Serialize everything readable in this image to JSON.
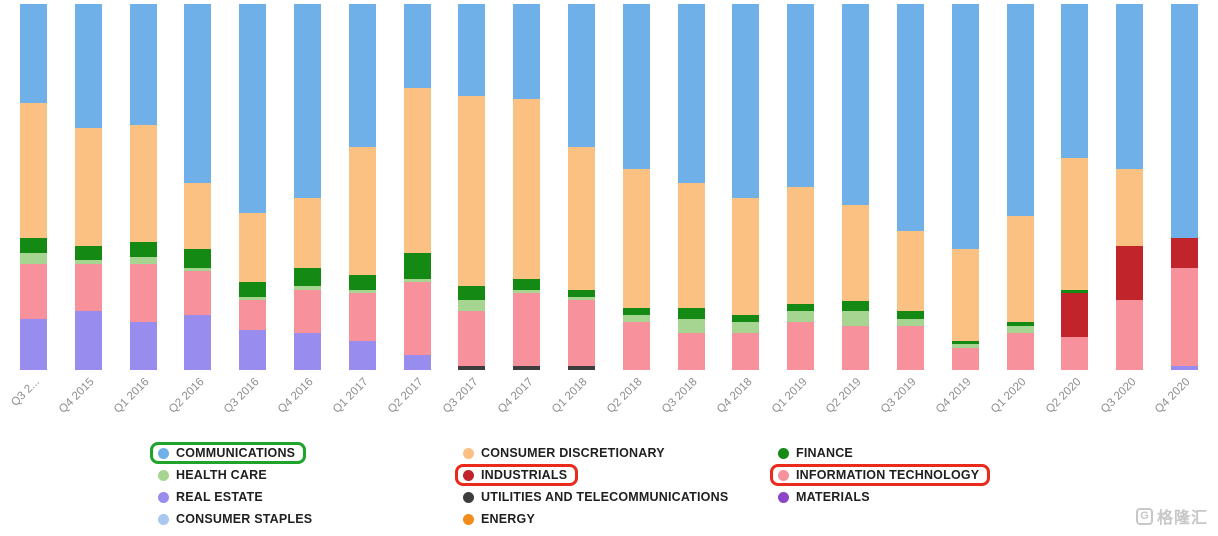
{
  "chart_data": {
    "type": "bar",
    "stacked": true,
    "normalized_percent": true,
    "title": "",
    "xlabel": "",
    "ylabel": "",
    "grid": false,
    "legend_position": "bottom",
    "ylim": [
      0,
      100
    ],
    "categories": [
      "Q3 2...",
      "Q4 2015",
      "Q1 2016",
      "Q2 2016",
      "Q3 2016",
      "Q4 2016",
      "Q1 2017",
      "Q2 2017",
      "Q3 2017",
      "Q4 2017",
      "Q1 2018",
      "Q2 2018",
      "Q3 2018",
      "Q4 2018",
      "Q1 2019",
      "Q2 2019",
      "Q3 2019",
      "Q4 2019",
      "Q1 2020",
      "Q2 2020",
      "Q3 2020",
      "Q4 2020"
    ],
    "series": [
      {
        "id": "consumer-staples",
        "name": "CONSUMER STAPLES",
        "color": "#a9c7ef",
        "values": [
          0,
          0,
          0,
          0,
          0,
          0,
          0,
          0,
          0,
          0,
          0,
          0,
          0,
          0,
          0,
          0,
          0,
          0,
          0,
          0,
          0,
          0
        ]
      },
      {
        "id": "materials",
        "name": "MATERIALS",
        "color": "#8e44c8",
        "values": [
          0,
          0,
          0,
          0,
          0,
          0,
          0,
          0,
          0,
          0,
          0,
          0,
          0,
          0,
          0,
          0,
          0,
          0,
          0,
          0,
          0,
          0
        ]
      },
      {
        "id": "utilities-and-telecommunications",
        "name": "UTILITIES AND TELECOMMUNICATIONS",
        "color": "#3d3d3d",
        "values": [
          0,
          0,
          0,
          0,
          0,
          0,
          0,
          0,
          1,
          1,
          1,
          0,
          0,
          0,
          0,
          0,
          0,
          0,
          0,
          0,
          0,
          0
        ]
      },
      {
        "id": "real-estate",
        "name": "REAL ESTATE",
        "color": "#988cee",
        "values": [
          14,
          16,
          13,
          15,
          11,
          10,
          8,
          4,
          0,
          0,
          0,
          0,
          0,
          0,
          0,
          0,
          0,
          0,
          0,
          0,
          0,
          1
        ]
      },
      {
        "id": "information-technology",
        "name": "INFORMATION TECHNOLOGY",
        "color": "#f7929c",
        "values": [
          15,
          13,
          16,
          12,
          8,
          12,
          13,
          20,
          15,
          20,
          18,
          13,
          10,
          10,
          13,
          12,
          12,
          6,
          10,
          9,
          19,
          27
        ]
      },
      {
        "id": "health-care",
        "name": "HEALTH CARE",
        "color": "#a6d592",
        "values": [
          3,
          1,
          2,
          1,
          1,
          1,
          1,
          1,
          3,
          1,
          1,
          2,
          4,
          3,
          3,
          4,
          2,
          1,
          2,
          0,
          0,
          0
        ]
      },
      {
        "id": "industrials",
        "name": "INDUSTRIALS",
        "color": "#c1242b",
        "values": [
          0,
          0,
          0,
          0,
          0,
          0,
          0,
          0,
          0,
          0,
          0,
          0,
          0,
          0,
          0,
          0,
          0,
          0,
          0,
          12,
          15,
          8
        ]
      },
      {
        "id": "finance",
        "name": "FINANCE",
        "color": "#148a14",
        "values": [
          4,
          4,
          4,
          5,
          4,
          5,
          4,
          7,
          4,
          3,
          2,
          2,
          3,
          2,
          2,
          3,
          2,
          1,
          1,
          1,
          0,
          0
        ]
      },
      {
        "id": "energy",
        "name": "ENERGY",
        "color": "#f28c1b",
        "values": [
          0,
          0,
          0,
          0,
          0,
          0,
          0,
          0,
          0,
          0,
          0,
          0,
          0,
          0,
          0,
          0,
          0,
          0,
          0,
          0,
          0,
          0
        ]
      },
      {
        "id": "consumer-discretionary",
        "name": "CONSUMER DISCRETIONARY",
        "color": "#fbc183",
        "values": [
          37,
          32,
          32,
          18,
          19,
          19,
          35,
          45,
          52,
          49,
          39,
          38,
          34,
          32,
          32,
          26,
          22,
          25,
          29,
          36,
          21,
          0
        ]
      },
      {
        "id": "communications",
        "name": "COMMUNICATIONS",
        "color": "#70b0e8",
        "values": [
          27,
          34,
          33,
          49,
          57,
          53,
          39,
          23,
          25,
          26,
          39,
          45,
          49,
          53,
          50,
          55,
          62,
          67,
          58,
          42,
          45,
          64
        ]
      }
    ]
  },
  "legend": {
    "items": [
      {
        "id": "communications",
        "label": "COMMUNICATIONS",
        "color": "#70b0e8",
        "highlight": "green"
      },
      {
        "id": "health-care",
        "label": "HEALTH CARE",
        "color": "#a6d592",
        "highlight": null
      },
      {
        "id": "real-estate",
        "label": "REAL ESTATE",
        "color": "#988cee",
        "highlight": null
      },
      {
        "id": "consumer-staples",
        "label": "CONSUMER STAPLES",
        "color": "#a9c7ef",
        "highlight": null
      },
      {
        "id": "consumer-discretionary",
        "label": "CONSUMER DISCRETIONARY",
        "color": "#fbc183",
        "highlight": null
      },
      {
        "id": "industrials",
        "label": "INDUSTRIALS",
        "color": "#c1242b",
        "highlight": "red"
      },
      {
        "id": "utilities-and-telecommunications",
        "label": "UTILITIES AND TELECOMMUNICATIONS",
        "color": "#3d3d3d",
        "highlight": null
      },
      {
        "id": "energy",
        "label": "ENERGY",
        "color": "#f28c1b",
        "highlight": null
      },
      {
        "id": "finance",
        "label": "FINANCE",
        "color": "#148a14",
        "highlight": null
      },
      {
        "id": "information-technology",
        "label": "INFORMATION TECHNOLOGY",
        "color": "#f7929c",
        "highlight": "red"
      },
      {
        "id": "materials",
        "label": "MATERIALS",
        "color": "#8e44c8",
        "highlight": null
      }
    ]
  },
  "watermark": {
    "logo_letter": "G",
    "text": "格隆汇"
  }
}
